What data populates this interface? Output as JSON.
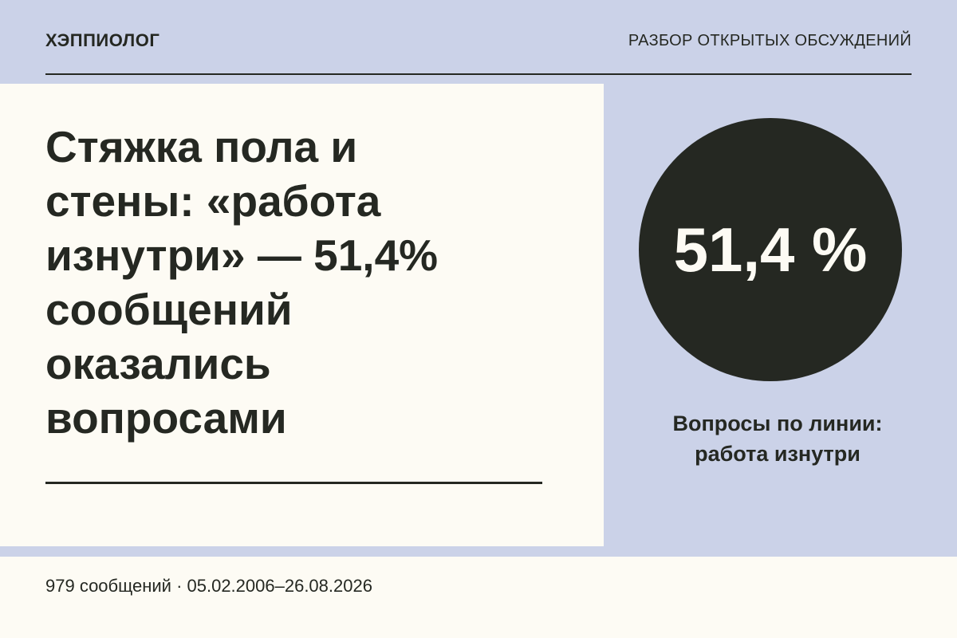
{
  "header": {
    "brand": "ХЭППИОЛОГ",
    "section": "РАЗБОР ОТКРЫТЫХ ОБСУЖДЕНИЙ"
  },
  "headline": {
    "lines": [
      "Стяжка пола и",
      "стены: «работа",
      "изнутри» — 51,4%",
      "сообщений",
      "оказались",
      "вопросами"
    ]
  },
  "stat": {
    "value": "51,4 %",
    "caption": [
      "Вопросы по линии:",
      "работа изнутри"
    ]
  },
  "footer": {
    "text": "979 сообщений · 05.02.2006–26.08.2026"
  }
}
